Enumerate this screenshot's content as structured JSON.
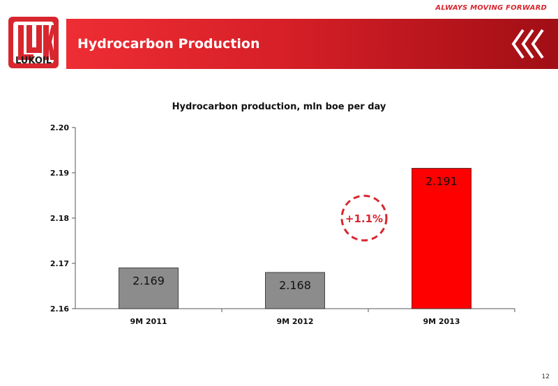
{
  "header": {
    "tagline": "ALWAYS MOVING FORWARD",
    "title": "Hydrocarbon Production",
    "logo_text": "LUKOIL",
    "brand_color": "#d7262e"
  },
  "page_number": "12",
  "chart_data": {
    "type": "bar",
    "title": "Hydrocarbon production,  mln boe per day",
    "categories": [
      "9M 2011",
      "9M 2012",
      "9M 2013"
    ],
    "values": [
      2.169,
      2.168,
      2.191
    ],
    "data_labels": [
      "2.169",
      "2.168",
      "2.191"
    ],
    "bar_colors": [
      "#8c8c8c",
      "#8c8c8c",
      "#ff0000"
    ],
    "ylim": [
      2.16,
      2.2
    ],
    "yticks": [
      2.16,
      2.17,
      2.18,
      2.19,
      2.2
    ],
    "ytick_labels": [
      "2.16",
      "2.17",
      "2.18",
      "2.19",
      "2.20"
    ],
    "xlabel": "",
    "ylabel": "",
    "grid": false,
    "annotation": {
      "text": "+1.1%",
      "color": "#d7262e",
      "style": "dashed-circle"
    }
  }
}
